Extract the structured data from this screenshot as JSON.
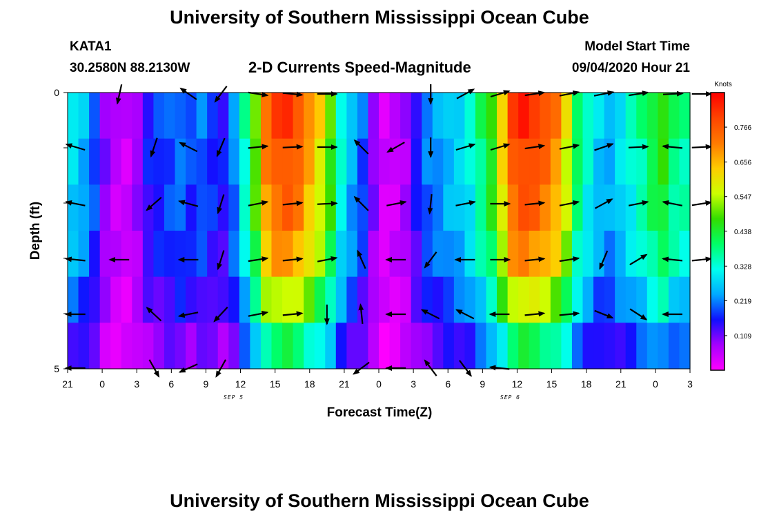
{
  "page": {
    "title_top": "University of Southern Mississippi Ocean Cube",
    "title_bottom": "University of Southern Mississippi Ocean Cube",
    "station_name": "KATA1",
    "station_coords": "30.2580N 88.2130W",
    "chart_title": "2-D Currents Speed-Magnitude",
    "model_label": "Model Start Time",
    "model_time": "09/04/2020 Hour 21"
  },
  "colors": {
    "scale": [
      "#ff00ff",
      "#a600ff",
      "#1010ff",
      "#00aaff",
      "#00ffee",
      "#00ff66",
      "#33dd00",
      "#ccff00",
      "#ffcc00",
      "#ff7a00",
      "#ff4400",
      "#ff0000"
    ],
    "arrow": "#000000",
    "frame": "#000000"
  },
  "chart_data": {
    "type": "heatmap",
    "title": "2-D Currents Speed-Magnitude",
    "xlabel": "Forecast Time(Z)",
    "ylabel": "Depth (ft)",
    "x_tick_labels": [
      "21",
      "0",
      "3",
      "6",
      "9",
      "12",
      "15",
      "18",
      "21",
      "0",
      "3",
      "6",
      "9",
      "12",
      "15",
      "18",
      "21",
      "0",
      "3"
    ],
    "x_date_labels": [
      "SEP 5",
      "SEP 6"
    ],
    "y_tick_labels": [
      "0",
      "5"
    ],
    "ylim": [
      0,
      5
    ],
    "colorbar": {
      "unit": "Knots",
      "ticks": [
        0.766,
        0.656,
        0.547,
        0.438,
        0.328,
        0.219,
        0.109
      ],
      "range": [
        0.0,
        0.875
      ]
    },
    "grid": false,
    "legend": "right (colorbar)",
    "notes_hidden": false,
    "speed_profile_knots": [
      0.3,
      0.26,
      0.2,
      0.1,
      0.06,
      0.05,
      0.09,
      0.16,
      0.18,
      0.2,
      0.22,
      0.19,
      0.21,
      0.18,
      0.16,
      0.23,
      0.36,
      0.52,
      0.74,
      0.8,
      0.82,
      0.78,
      0.7,
      0.62,
      0.5,
      0.34,
      0.26,
      0.2,
      0.1,
      0.04,
      0.05,
      0.08,
      0.16,
      0.22,
      0.24,
      0.27,
      0.29,
      0.33,
      0.4,
      0.48,
      0.64,
      0.8,
      0.84,
      0.82,
      0.78,
      0.72,
      0.6,
      0.42,
      0.34,
      0.28,
      0.26,
      0.3,
      0.34,
      0.38,
      0.44,
      0.48,
      0.4,
      0.38
    ],
    "depth_factor": [
      1.0,
      0.95,
      0.92,
      0.85,
      0.7,
      0.5
    ],
    "arrow_times": [
      21.7,
      1.5,
      4.5,
      7.5,
      10.3,
      13.5,
      16.5,
      19.5,
      22.5,
      1.5,
      4.5,
      7.5,
      10.5,
      13.5,
      16.5,
      19.5,
      22.5,
      1.5,
      4.0
    ],
    "arrow_vectors": [
      [
        [
          0,
          0
        ],
        [
          -0.2,
          0.9
        ],
        [
          0,
          0
        ],
        [
          -1,
          -0.7
        ],
        [
          -0.6,
          0.8
        ],
        [
          1,
          0.15
        ],
        [
          1,
          0.1
        ],
        [
          1,
          0
        ],
        [
          0,
          0
        ],
        [
          0,
          0
        ],
        [
          0,
          1
        ],
        [
          1,
          -0.55
        ],
        [
          1,
          -0.3
        ],
        [
          1,
          -0.15
        ],
        [
          1,
          -0.2
        ],
        [
          1,
          -0.2
        ],
        [
          1,
          -0.15
        ],
        [
          1,
          -0.05
        ],
        [
          1,
          0
        ]
      ],
      [
        [
          -1,
          -0.3
        ],
        [
          0,
          0
        ],
        [
          -0.3,
          0.9
        ],
        [
          -0.9,
          -0.45
        ],
        [
          -0.4,
          0.95
        ],
        [
          1,
          -0.1
        ],
        [
          1,
          -0.05
        ],
        [
          1,
          0
        ],
        [
          -0.7,
          -0.7
        ],
        [
          -0.8,
          0.45
        ],
        [
          0,
          1
        ],
        [
          1,
          -0.3
        ],
        [
          1,
          -0.3
        ],
        [
          1,
          -0.15
        ],
        [
          1,
          -0.2
        ],
        [
          1,
          -0.35
        ],
        [
          1,
          -0.05
        ],
        [
          -1,
          -0.1
        ],
        [
          1,
          -0.05
        ]
      ],
      [
        [
          -1,
          -0.2
        ],
        [
          0,
          0
        ],
        [
          -0.8,
          0.7
        ],
        [
          -0.9,
          -0.25
        ],
        [
          -0.3,
          0.95
        ],
        [
          1,
          -0.2
        ],
        [
          1,
          -0.1
        ],
        [
          1,
          -0.05
        ],
        [
          -0.7,
          -0.7
        ],
        [
          1,
          -0.2
        ],
        [
          -0.1,
          0.95
        ],
        [
          1,
          -0.2
        ],
        [
          1,
          0
        ],
        [
          1,
          -0.1
        ],
        [
          1,
          -0.2
        ],
        [
          1,
          -0.55
        ],
        [
          1,
          -0.2
        ],
        [
          -1,
          -0.2
        ],
        [
          1,
          -0.15
        ]
      ],
      [
        [
          -1,
          -0.1
        ],
        [
          -1,
          0
        ],
        [
          0,
          0
        ],
        [
          -1,
          0
        ],
        [
          -0.3,
          0.95
        ],
        [
          1,
          -0.15
        ],
        [
          1,
          -0.1
        ],
        [
          1,
          -0.2
        ],
        [
          -0.4,
          -0.9
        ],
        [
          -1,
          0
        ],
        [
          -0.6,
          0.8
        ],
        [
          -1,
          0
        ],
        [
          1,
          0
        ],
        [
          1,
          -0.1
        ],
        [
          1,
          -0.15
        ],
        [
          -0.4,
          0.95
        ],
        [
          1,
          -0.6
        ],
        [
          -1,
          -0.1
        ],
        [
          1,
          -0.1
        ]
      ],
      [
        [
          -1,
          0
        ],
        [
          0,
          0
        ],
        [
          -0.7,
          -0.65
        ],
        [
          -1,
          0.2
        ],
        [
          -0.7,
          0.75
        ],
        [
          1,
          -0.2
        ],
        [
          1,
          -0.1
        ],
        [
          0,
          1
        ],
        [
          -0.1,
          -0.95
        ],
        [
          -1,
          0
        ],
        [
          -1,
          -0.5
        ],
        [
          -1,
          -0.5
        ],
        [
          -1,
          0
        ],
        [
          1,
          -0.1
        ],
        [
          1,
          -0.1
        ],
        [
          1,
          0.4
        ],
        [
          1,
          0.65
        ],
        [
          -1,
          0
        ],
        [
          0,
          0
        ]
      ],
      [
        [
          -1,
          0
        ],
        [
          0,
          0
        ],
        [
          0.5,
          0.9
        ],
        [
          -1,
          0.45
        ],
        [
          -0.5,
          0.9
        ],
        [
          0,
          0
        ],
        [
          0,
          0
        ],
        [
          0,
          0
        ],
        [
          -0.8,
          0.6
        ],
        [
          -1,
          0
        ],
        [
          -0.6,
          -0.8
        ],
        [
          0.6,
          0.8
        ],
        [
          -1,
          -0.1
        ],
        [
          0,
          0
        ],
        [
          0,
          0
        ],
        [
          0,
          0
        ],
        [
          0,
          0
        ],
        [
          0,
          0
        ],
        [
          0,
          0
        ]
      ]
    ]
  }
}
